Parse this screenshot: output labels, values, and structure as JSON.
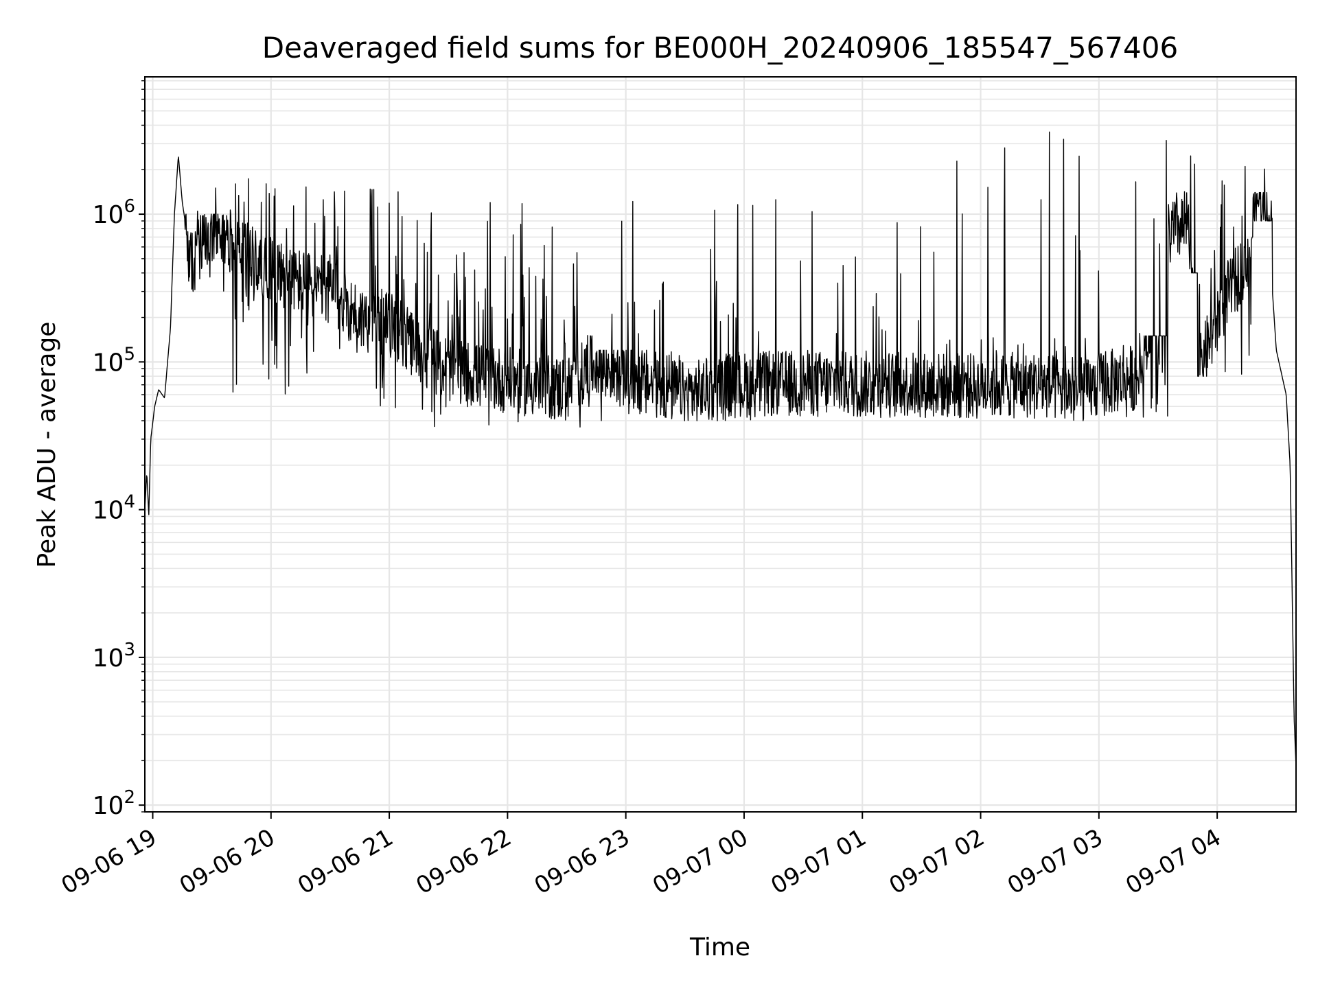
{
  "chart_data": {
    "type": "line",
    "title": "Deaveraged field sums for BE000H_20240906_185547_567406",
    "xlabel": "Time",
    "ylabel": "Peak ADU - average",
    "yscale": "log",
    "ylim": [
      90,
      8500000
    ],
    "xlim": [
      "2024-09-06 18:56",
      "2024-09-07 04:40"
    ],
    "grid": true,
    "line_color": "#000000",
    "grid_color": "#e6e6e6",
    "x_ticks": [
      {
        "t": "2024-09-06 19:00",
        "label": "09-06 19"
      },
      {
        "t": "2024-09-06 20:00",
        "label": "09-06 20"
      },
      {
        "t": "2024-09-06 21:00",
        "label": "09-06 21"
      },
      {
        "t": "2024-09-06 22:00",
        "label": "09-06 22"
      },
      {
        "t": "2024-09-06 23:00",
        "label": "09-06 23"
      },
      {
        "t": "2024-09-07 00:00",
        "label": "09-07 00"
      },
      {
        "t": "2024-09-07 01:00",
        "label": "09-07 01"
      },
      {
        "t": "2024-09-07 02:00",
        "label": "09-07 02"
      },
      {
        "t": "2024-09-07 03:00",
        "label": "09-07 03"
      },
      {
        "t": "2024-09-07 04:00",
        "label": "09-07 04"
      }
    ],
    "y_ticks": [
      {
        "value": 100,
        "base": "10",
        "exp": "2"
      },
      {
        "value": 1000,
        "base": "10",
        "exp": "3"
      },
      {
        "value": 10000,
        "base": "10",
        "exp": "4"
      },
      {
        "value": 100000,
        "base": "10",
        "exp": "5"
      },
      {
        "value": 1000000,
        "base": "10",
        "exp": "6"
      }
    ],
    "series": [
      {
        "points": [
          [
            "2024-09-06 18:56",
            10000
          ],
          [
            "2024-09-06 18:57",
            18000
          ],
          [
            "2024-09-06 18:58",
            9000
          ],
          [
            "2024-09-06 18:59",
            30000
          ],
          [
            "2024-09-06 19:01",
            50000
          ],
          [
            "2024-09-06 19:03",
            65000
          ],
          [
            "2024-09-06 19:06",
            57000
          ],
          [
            "2024-09-06 19:09",
            170000
          ],
          [
            "2024-09-06 19:11",
            1000000
          ],
          [
            "2024-09-06 19:13",
            2500000
          ],
          [
            "2024-09-06 19:15",
            1200000
          ],
          [
            "2024-09-06 19:17",
            800000
          ],
          [
            "2024-09-06 19:20",
            400000
          ],
          [
            "2024-09-06 19:25",
            600000
          ],
          [
            "2024-09-06 19:30",
            700000
          ],
          [
            "2024-09-06 19:40",
            650000
          ],
          [
            "2024-09-06 19:50",
            500000
          ],
          [
            "2024-09-06 20:00",
            420000
          ],
          [
            "2024-09-06 20:15",
            350000
          ],
          [
            "2024-09-06 20:30",
            300000
          ],
          [
            "2024-09-06 20:45",
            200000
          ],
          [
            "2024-09-06 21:00",
            180000
          ],
          [
            "2024-09-06 21:15",
            120000
          ],
          [
            "2024-09-06 21:30",
            90000
          ],
          [
            "2024-09-06 21:45",
            80000
          ],
          [
            "2024-09-06 22:00",
            75000
          ],
          [
            "2024-09-06 22:15",
            70000
          ],
          [
            "2024-09-06 22:30",
            65000
          ],
          [
            "2024-09-06 22:45",
            100000
          ],
          [
            "2024-09-06 23:00",
            80000
          ],
          [
            "2024-09-06 23:15",
            70000
          ],
          [
            "2024-09-06 23:30",
            60000
          ],
          [
            "2024-09-06 23:45",
            65000
          ],
          [
            "2024-09-07 00:00",
            70000
          ],
          [
            "2024-09-07 00:30",
            72000
          ],
          [
            "2024-09-07 01:00",
            70000
          ],
          [
            "2024-09-07 01:30",
            70000
          ],
          [
            "2024-09-07 02:00",
            68000
          ],
          [
            "2024-09-07 02:30",
            70000
          ],
          [
            "2024-09-07 02:50",
            60000
          ],
          [
            "2024-09-07 03:00",
            70000
          ],
          [
            "2024-09-07 03:20",
            80000
          ],
          [
            "2024-09-07 03:35",
            700000
          ],
          [
            "2024-09-07 03:45",
            900000
          ],
          [
            "2024-09-07 03:50",
            80000
          ],
          [
            "2024-09-07 04:00",
            200000
          ],
          [
            "2024-09-07 04:15",
            500000
          ],
          [
            "2024-09-07 04:20",
            1300000
          ],
          [
            "2024-09-07 04:25",
            1200000
          ],
          [
            "2024-09-07 04:30",
            120000
          ],
          [
            "2024-09-07 04:35",
            60000
          ],
          [
            "2024-09-07 04:37",
            20000
          ],
          [
            "2024-09-07 04:38",
            3000
          ],
          [
            "2024-09-07 04:39",
            400
          ],
          [
            "2024-09-07 04:40",
            180
          ]
        ],
        "noise": [
          {
            "from": "2024-09-06 19:16",
            "to": "2024-09-06 19:40",
            "low": 300000,
            "high": 1000000,
            "peak": 1800000
          },
          {
            "from": "2024-09-06 19:40",
            "to": "2024-09-06 20:30",
            "low": 60000,
            "high": 1300000,
            "peak": 1800000
          },
          {
            "from": "2024-09-06 20:30",
            "to": "2024-09-06 21:10",
            "low": 45000,
            "high": 1400000,
            "peak": 1500000
          },
          {
            "from": "2024-09-06 21:10",
            "to": "2024-09-06 22:10",
            "low": 35000,
            "high": 400000,
            "peak": 1200000
          },
          {
            "from": "2024-09-06 22:10",
            "to": "2024-09-06 22:45",
            "low": 35000,
            "high": 150000,
            "peak": 900000
          },
          {
            "from": "2024-09-06 22:45",
            "to": "2024-09-07 01:40",
            "low": 40000,
            "high": 120000,
            "peak": 1350000
          },
          {
            "from": "2024-09-07 01:40",
            "to": "2024-09-07 03:35",
            "low": 40000,
            "high": 150000,
            "peak": 4500000
          },
          {
            "from": "2024-09-07 03:35",
            "to": "2024-09-07 03:50",
            "low": 400000,
            "high": 1500000,
            "peak": 2500000
          },
          {
            "from": "2024-09-07 03:50",
            "to": "2024-09-07 04:18",
            "low": 80000,
            "high": 700000,
            "peak": 2200000
          },
          {
            "from": "2024-09-07 04:18",
            "to": "2024-09-07 04:28",
            "low": 900000,
            "high": 1400000,
            "peak": 5300000
          }
        ]
      }
    ]
  }
}
